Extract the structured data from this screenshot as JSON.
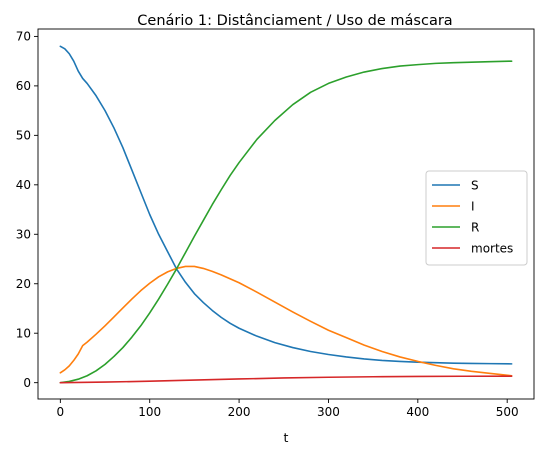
{
  "chart_data": {
    "type": "line",
    "title": "Cenário 1: Distânciament / Uso de máscara",
    "xlabel": "t",
    "ylabel": "",
    "xlim": [
      -25,
      530
    ],
    "ylim": [
      -3.3,
      71.5
    ],
    "xticks": [
      0,
      100,
      200,
      300,
      400,
      500
    ],
    "yticks": [
      0,
      10,
      20,
      30,
      40,
      50,
      60,
      70
    ],
    "grid": false,
    "legend_position": "center-right",
    "series": [
      {
        "name": "S",
        "color": "#1f77b4",
        "x": [
          0,
          5,
          10,
          15,
          20,
          25,
          30,
          40,
          50,
          60,
          70,
          80,
          90,
          100,
          110,
          120,
          130,
          140,
          150,
          160,
          170,
          180,
          190,
          200,
          220,
          240,
          260,
          280,
          300,
          320,
          340,
          360,
          380,
          400,
          420,
          440,
          460,
          480,
          505
        ],
        "values": [
          68,
          67.5,
          66.5,
          65,
          63,
          61.5,
          60.5,
          58,
          55,
          51.5,
          47.5,
          43,
          38.5,
          34,
          30,
          26.5,
          23,
          20.3,
          18,
          16.2,
          14.6,
          13.2,
          12,
          11,
          9.4,
          8.1,
          7.1,
          6.3,
          5.7,
          5.2,
          4.8,
          4.5,
          4.3,
          4.15,
          4.05,
          3.95,
          3.9,
          3.85,
          3.8
        ]
      },
      {
        "name": "I",
        "color": "#ff7f0e",
        "x": [
          0,
          5,
          10,
          15,
          20,
          25,
          30,
          40,
          50,
          60,
          70,
          80,
          90,
          100,
          110,
          120,
          130,
          140,
          150,
          160,
          170,
          180,
          200,
          220,
          240,
          260,
          280,
          300,
          320,
          340,
          360,
          380,
          400,
          420,
          440,
          460,
          480,
          505
        ],
        "values": [
          2,
          2.6,
          3.4,
          4.5,
          5.8,
          7.5,
          8.2,
          9.8,
          11.5,
          13.3,
          15.1,
          16.9,
          18.6,
          20.1,
          21.4,
          22.4,
          23.1,
          23.5,
          23.5,
          23.1,
          22.5,
          21.8,
          20.2,
          18.3,
          16.3,
          14.3,
          12.4,
          10.6,
          9.1,
          7.6,
          6.3,
          5.2,
          4.3,
          3.5,
          2.8,
          2.3,
          1.9,
          1.4
        ]
      },
      {
        "name": "R",
        "color": "#2ca02c",
        "x": [
          0,
          10,
          20,
          30,
          40,
          50,
          60,
          70,
          80,
          90,
          100,
          110,
          120,
          130,
          140,
          150,
          160,
          170,
          180,
          190,
          200,
          220,
          240,
          260,
          280,
          300,
          320,
          340,
          360,
          380,
          400,
          420,
          440,
          460,
          480,
          505
        ],
        "values": [
          0,
          0.25,
          0.7,
          1.4,
          2.4,
          3.7,
          5.3,
          7.1,
          9.2,
          11.5,
          14.1,
          16.9,
          19.9,
          23,
          26.3,
          29.6,
          32.8,
          36,
          39,
          41.9,
          44.5,
          49.2,
          53,
          56.2,
          58.7,
          60.5,
          61.8,
          62.8,
          63.5,
          64,
          64.3,
          64.55,
          64.7,
          64.8,
          64.9,
          65
        ]
      },
      {
        "name": "mortes",
        "color": "#d62728",
        "x": [
          0,
          50,
          100,
          150,
          200,
          250,
          300,
          350,
          400,
          450,
          505
        ],
        "values": [
          0,
          0.12,
          0.3,
          0.52,
          0.75,
          0.95,
          1.1,
          1.2,
          1.26,
          1.3,
          1.32
        ]
      }
    ]
  }
}
